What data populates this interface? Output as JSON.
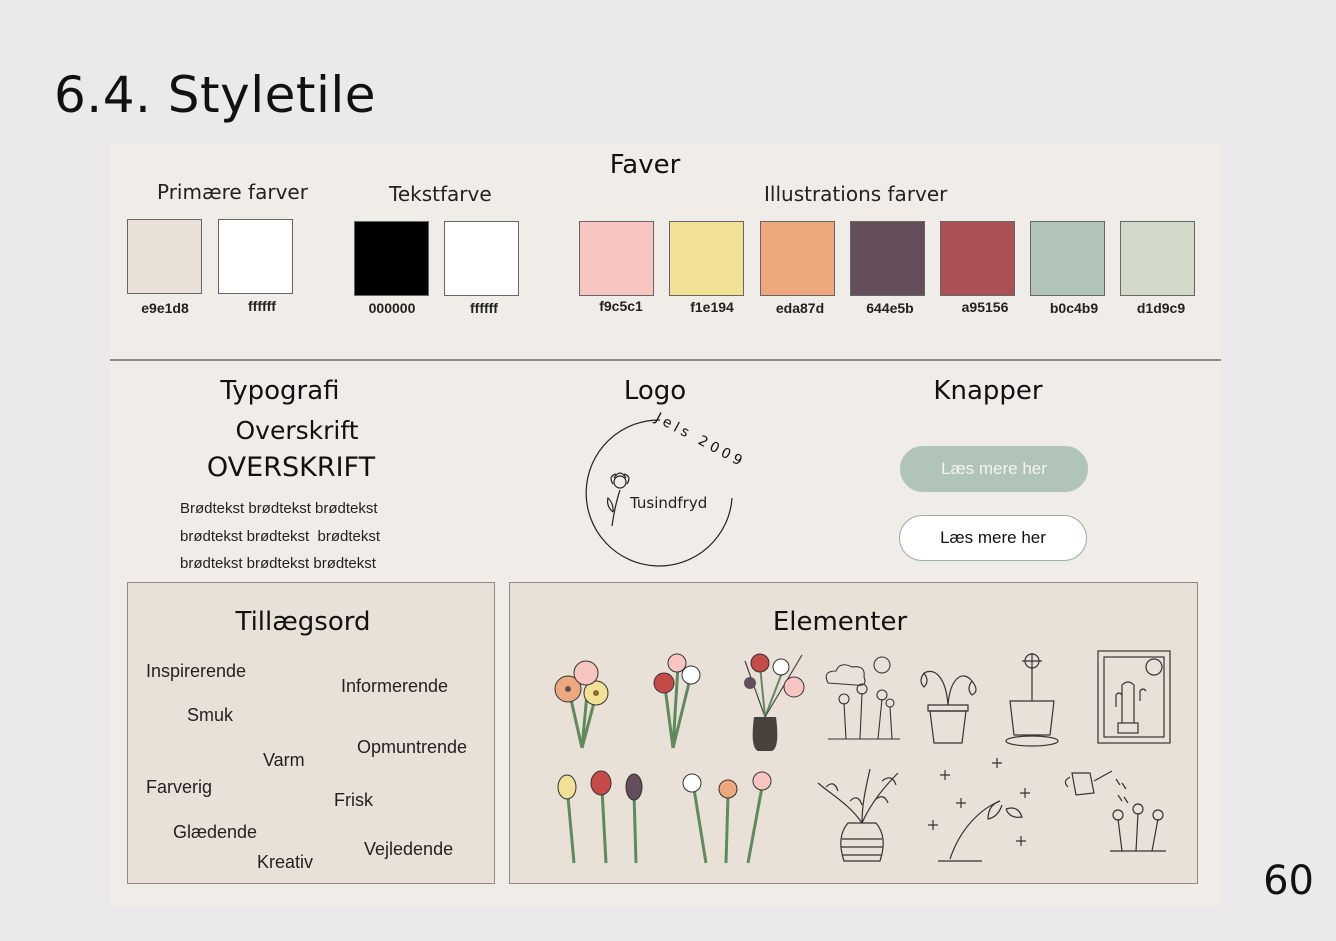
{
  "page": {
    "title": "6.4. Styletile",
    "number": "60"
  },
  "colors": {
    "section_title": "Faver",
    "primary": {
      "label": "Primære farver",
      "swatches": [
        {
          "hex": "#e9e1d8",
          "code": "e9e1d8"
        },
        {
          "hex": "#ffffff",
          "code": "ffffff"
        }
      ]
    },
    "text": {
      "label": "Tekstfarve",
      "swatches": [
        {
          "hex": "#000000",
          "code": "000000"
        },
        {
          "hex": "#ffffff",
          "code": "ffffff"
        }
      ]
    },
    "illustration": {
      "label": "Illustrations farver",
      "swatches": [
        {
          "hex": "#f9c5c1",
          "code": "f9c5c1"
        },
        {
          "hex": "#f1e194",
          "code": "f1e194"
        },
        {
          "hex": "#eda87d",
          "code": "eda87d"
        },
        {
          "hex": "#644e5b",
          "code": "644e5b"
        },
        {
          "hex": "#a95156",
          "code": "a95156"
        },
        {
          "hex": "#b0c4b9",
          "code": "b0c4b9"
        },
        {
          "hex": "#d1d9c9",
          "code": "d1d9c9"
        }
      ]
    }
  },
  "typography": {
    "title": "Typografi",
    "heading_mixed": "Overskrift",
    "heading_upper": "OVERSKRIFT",
    "body_lines": [
      "Brødtekst brødtekst brødtekst",
      "brødtekst brødtekst  brødtekst",
      "brødtekst brødtekst brødtekst"
    ]
  },
  "logo": {
    "title": "Logo",
    "arc_text": "Jels 2009",
    "name": "Tusindfryd"
  },
  "buttons": {
    "title": "Knapper",
    "primary_label": "Læs mere her",
    "secondary_label": "Læs mere her"
  },
  "adjectives": {
    "title": "Tillægsord",
    "words": [
      "Inspirerende",
      "Informerende",
      "Smuk",
      "Varm",
      "Opmuntrende",
      "Farverig",
      "Frisk",
      "Glædende",
      "Kreativ",
      "Vejledende"
    ]
  },
  "elements": {
    "title": "Elementer",
    "icons": [
      "mixed-bouquet-icon",
      "rose-bouquet-icon",
      "vase-bouquet-icon",
      "garden-sun-icon",
      "wilted-plant-icon",
      "potted-flower-icon",
      "window-cactus-icon",
      "tulips-icon",
      "carnations-icon",
      "striped-vase-icon",
      "snowdrop-icon",
      "watering-can-icon"
    ]
  }
}
